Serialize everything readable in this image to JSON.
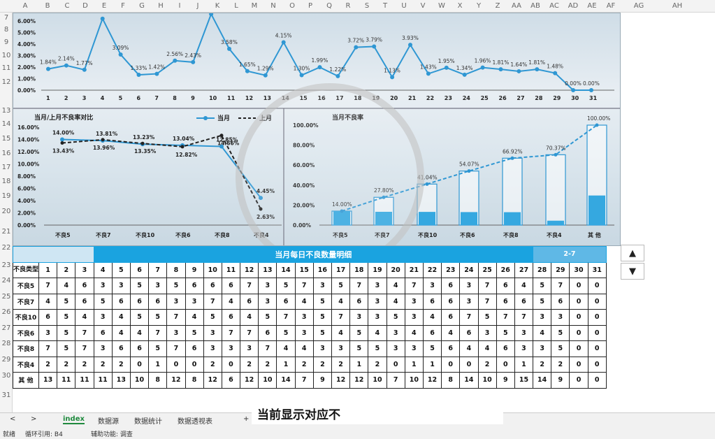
{
  "columns": [
    "A",
    "B",
    "C",
    "D",
    "E",
    "F",
    "G",
    "H",
    "I",
    "J",
    "K",
    "L",
    "M",
    "N",
    "O",
    "P",
    "Q",
    "R",
    "S",
    "T",
    "U",
    "V",
    "W",
    "X",
    "Y",
    "Z",
    "AA",
    "AB",
    "AC",
    "AD",
    "AE",
    "AF",
    "AG",
    "AH"
  ],
  "rows": [
    "7",
    "8",
    "9",
    "10",
    "11",
    "12",
    "13",
    "14",
    "15",
    "16",
    "17",
    "18",
    "19",
    "20",
    "21",
    "22",
    "23",
    "24",
    "25",
    "26",
    "27",
    "28",
    "29",
    "30",
    "31"
  ],
  "chart_data": [
    {
      "type": "line",
      "x": [
        1,
        2,
        3,
        4,
        5,
        6,
        7,
        8,
        9,
        10,
        11,
        12,
        13,
        14,
        15,
        16,
        17,
        18,
        19,
        20,
        21,
        22,
        23,
        24,
        25,
        26,
        27,
        28,
        29,
        30,
        31
      ],
      "values": [
        1.84,
        2.14,
        1.77,
        6.2,
        3.09,
        1.33,
        1.42,
        2.56,
        2.43,
        6.6,
        3.58,
        1.65,
        1.29,
        4.15,
        1.3,
        1.99,
        1.22,
        3.72,
        3.79,
        1.13,
        3.93,
        1.43,
        1.95,
        1.34,
        1.96,
        1.81,
        1.64,
        1.81,
        1.48,
        0.0,
        0.0
      ],
      "labels": [
        "1.84%",
        "2.14%",
        "1.77%",
        "",
        "3.09%",
        "1.33%",
        "1.42%",
        "2.56%",
        "2.43%",
        "",
        "3.58%",
        "1.65%",
        "1.29%",
        "4.15%",
        "1.30%",
        "1.99%",
        "1.22%",
        "3.72%",
        "3.79%",
        "1.13%",
        "3.93%",
        "1.43%",
        "1.95%",
        "1.34%",
        "1.96%",
        "1.81%",
        "1.64%",
        "1.81%",
        "1.48%",
        "0.00%",
        "0.00%"
      ],
      "yticks": [
        "6.00%",
        "5.00%",
        "4.00%",
        "3.00%",
        "2.00%",
        "1.00%",
        "0.00%"
      ],
      "ylim": [
        0,
        6
      ]
    },
    {
      "type": "line",
      "title": "当月/上月不良率对比",
      "categories": [
        "不良5",
        "不良7",
        "不良10",
        "不良6",
        "不良8",
        "不良4"
      ],
      "series": [
        {
          "name": "当月",
          "values": [
            14.0,
            13.81,
            13.23,
            13.04,
            12.85,
            4.45
          ],
          "labels": [
            "14.00%",
            "13.81%",
            "13.23%",
            "13.04%",
            "12.85%",
            "4.45%"
          ]
        },
        {
          "name": "上月",
          "values": [
            13.43,
            13.96,
            13.35,
            12.82,
            14.66,
            2.63
          ],
          "labels": [
            "13.43%",
            "13.96%",
            "13.35%",
            "12.82%",
            "14.66%",
            "2.63%"
          ]
        }
      ],
      "yticks": [
        "16.00%",
        "14.00%",
        "12.00%",
        "10.00%",
        "8.00%",
        "6.00%",
        "4.00%",
        "2.00%",
        "0.00%"
      ],
      "ylim": [
        0,
        16
      ]
    },
    {
      "type": "bar",
      "title": "当月不良率",
      "categories": [
        "不良5",
        "不良7",
        "不良10",
        "不良6",
        "不良8",
        "不良4",
        "其 他"
      ],
      "values": [
        14.0,
        27.8,
        41.04,
        54.07,
        66.92,
        70.37,
        100.0
      ],
      "labels": [
        "14.00%",
        "27.80%",
        "41.04%",
        "54.07%",
        "66.92%",
        "70.37%",
        "100.00%"
      ],
      "yticks": [
        "100.00%",
        "80.00%",
        "60.00%",
        "40.00%",
        "20.00%",
        "0.00%"
      ],
      "ylim": [
        0,
        100
      ]
    }
  ],
  "table": {
    "title": "当月每日不良数量明细",
    "range": "2-7",
    "corner": "不良类型",
    "days": [
      "1",
      "2",
      "3",
      "4",
      "5",
      "6",
      "7",
      "8",
      "9",
      "10",
      "11",
      "12",
      "13",
      "14",
      "15",
      "16",
      "17",
      "18",
      "19",
      "20",
      "21",
      "22",
      "23",
      "24",
      "25",
      "26",
      "27",
      "28",
      "29",
      "30",
      "31"
    ],
    "rows": [
      {
        "label": "不良5",
        "values": [
          "7",
          "4",
          "6",
          "3",
          "3",
          "5",
          "3",
          "5",
          "6",
          "6",
          "6",
          "7",
          "3",
          "5",
          "7",
          "3",
          "5",
          "7",
          "3",
          "4",
          "7",
          "3",
          "6",
          "3",
          "7",
          "6",
          "4",
          "5",
          "7",
          "0",
          "0"
        ]
      },
      {
        "label": "不良7",
        "values": [
          "4",
          "5",
          "6",
          "5",
          "6",
          "6",
          "6",
          "3",
          "3",
          "7",
          "4",
          "6",
          "3",
          "6",
          "4",
          "5",
          "4",
          "6",
          "3",
          "4",
          "3",
          "6",
          "6",
          "3",
          "7",
          "6",
          "6",
          "5",
          "6",
          "0",
          "0"
        ]
      },
      {
        "label": "不良10",
        "values": [
          "6",
          "5",
          "4",
          "3",
          "4",
          "5",
          "5",
          "7",
          "4",
          "5",
          "6",
          "4",
          "5",
          "7",
          "3",
          "5",
          "7",
          "3",
          "3",
          "5",
          "3",
          "4",
          "6",
          "7",
          "5",
          "7",
          "7",
          "3",
          "3",
          "0",
          "0"
        ]
      },
      {
        "label": "不良6",
        "values": [
          "3",
          "5",
          "7",
          "6",
          "4",
          "4",
          "7",
          "3",
          "5",
          "3",
          "7",
          "7",
          "6",
          "5",
          "3",
          "5",
          "4",
          "5",
          "4",
          "3",
          "4",
          "6",
          "4",
          "6",
          "3",
          "5",
          "3",
          "4",
          "5",
          "0",
          "0"
        ]
      },
      {
        "label": "不良8",
        "values": [
          "7",
          "5",
          "7",
          "3",
          "6",
          "6",
          "5",
          "7",
          "6",
          "3",
          "3",
          "3",
          "7",
          "4",
          "4",
          "3",
          "3",
          "5",
          "5",
          "3",
          "3",
          "5",
          "6",
          "4",
          "4",
          "6",
          "3",
          "3",
          "5",
          "0",
          "0"
        ]
      },
      {
        "label": "不良4",
        "values": [
          "2",
          "2",
          "2",
          "2",
          "2",
          "0",
          "1",
          "0",
          "0",
          "2",
          "0",
          "2",
          "2",
          "1",
          "2",
          "2",
          "2",
          "1",
          "2",
          "0",
          "1",
          "1",
          "0",
          "0",
          "2",
          "0",
          "1",
          "2",
          "2",
          "0",
          "0"
        ]
      },
      {
        "label": "其 他",
        "values": [
          "13",
          "11",
          "11",
          "11",
          "13",
          "10",
          "8",
          "12",
          "8",
          "12",
          "6",
          "12",
          "10",
          "14",
          "7",
          "9",
          "12",
          "12",
          "10",
          "7",
          "10",
          "12",
          "8",
          "14",
          "10",
          "9",
          "15",
          "14",
          "9",
          "0",
          "0"
        ]
      }
    ]
  },
  "scroll": {
    "up": "▲",
    "down": "▼"
  },
  "tabs": [
    "index",
    "数据源",
    "数据统计",
    "数据透视表",
    "+"
  ],
  "nav": {
    "prev": "<",
    "next": ">"
  },
  "status": {
    "ready": "就绪",
    "circular": "循环引用: B4",
    "accessibility": "辅助功能: 调查"
  },
  "subtitle": "当前显示对应不"
}
